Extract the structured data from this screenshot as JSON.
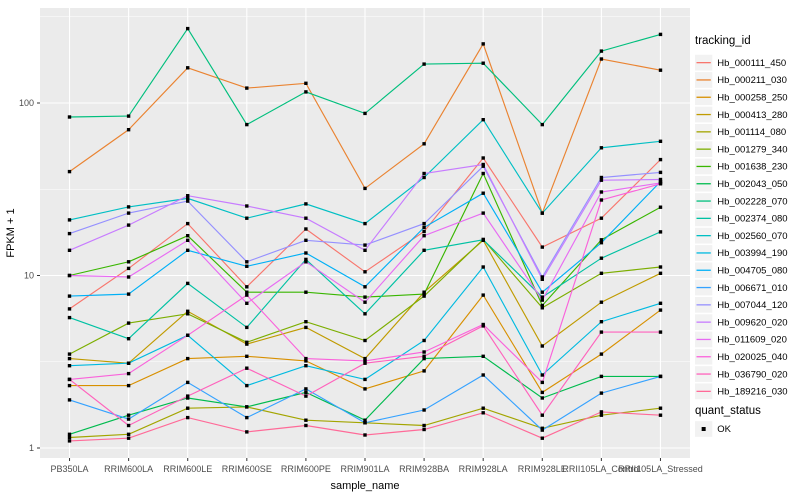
{
  "chart_data": {
    "type": "line",
    "title": "",
    "xlabel": "sample_name",
    "ylabel": "FPKM + 1",
    "legend_title": "tracking_id",
    "legend_position": "right",
    "grid": true,
    "panel_bg": "#EBEBEB",
    "grid_color": "#FFFFFF",
    "tick_label_color": "#4D4D4D",
    "axis_title_color": "#000000",
    "legend_key_bg": "#F2F2F2",
    "y_scale": "log10",
    "y_ticks": [
      1,
      10,
      100
    ],
    "y_minor_ticks": [
      3.162,
      31.62,
      316.2
    ],
    "y_range": [
      0.875,
      356
    ],
    "categories": [
      "PB350LA",
      "RRIM600LA",
      "RRIM600LE",
      "RRIM600SE",
      "RRIM600PE",
      "RRIM901LA",
      "RRIM928BA",
      "RRIM928LA",
      "RRIM928LE",
      "RRII105LA_Control",
      "RRII105LA_Stressed"
    ],
    "series": [
      {
        "name": "Hb_000111_450",
        "color": "#F8766D",
        "values": [
          6.4,
          11,
          20,
          8.6,
          18.6,
          10.5,
          18,
          48,
          14.6,
          21.5,
          47
        ]
      },
      {
        "name": "Hb_000211_030",
        "color": "#EA8331",
        "values": [
          40,
          70,
          160,
          122,
          130,
          32,
          58,
          220,
          23,
          180,
          155
        ]
      },
      {
        "name": "Hb_000258_250",
        "color": "#D89000",
        "values": [
          2.3,
          2.3,
          3.3,
          3.4,
          3.2,
          2.2,
          2.8,
          7.7,
          2.1,
          3.5,
          6.3
        ]
      },
      {
        "name": "Hb_000413_280",
        "color": "#C09B00",
        "values": [
          3.3,
          3.1,
          6.2,
          4.0,
          5.0,
          3.3,
          8.0,
          16,
          3.9,
          7.0,
          10.3
        ]
      },
      {
        "name": "Hb_001114_080",
        "color": "#A3A500",
        "values": [
          1.15,
          1.2,
          1.7,
          1.73,
          1.45,
          1.4,
          1.35,
          1.7,
          1.3,
          1.55,
          1.7
        ]
      },
      {
        "name": "Hb_001279_340",
        "color": "#7CAE00",
        "values": [
          3.5,
          5.3,
          6.0,
          4.1,
          5.4,
          4.2,
          7.6,
          16.2,
          6.5,
          10.3,
          11.2
        ]
      },
      {
        "name": "Hb_001638_230",
        "color": "#39B600",
        "values": [
          10,
          12,
          17,
          8.0,
          8.0,
          7.5,
          7.8,
          39,
          6.7,
          16.1,
          24.9
        ]
      },
      {
        "name": "Hb_002043_050",
        "color": "#00BB4E",
        "values": [
          1.2,
          1.55,
          1.95,
          1.73,
          2.1,
          1.45,
          3.3,
          3.4,
          1.95,
          2.6,
          2.6
        ]
      },
      {
        "name": "Hb_002228_070",
        "color": "#00BF7D",
        "values": [
          83,
          84,
          270,
          75,
          116,
          87,
          168,
          170,
          75,
          200,
          250
        ]
      },
      {
        "name": "Hb_002374_080",
        "color": "#00C1A3",
        "values": [
          5.7,
          4.3,
          9.0,
          5.0,
          12.4,
          6.0,
          14,
          16.1,
          7.5,
          12.6,
          17.9
        ]
      },
      {
        "name": "Hb_002560_070",
        "color": "#00BFC4",
        "values": [
          21,
          25,
          28,
          21.5,
          26,
          20,
          37,
          80,
          23,
          55,
          60
        ]
      },
      {
        "name": "Hb_003994_190",
        "color": "#00BAE0",
        "values": [
          3.0,
          3.1,
          4.5,
          2.3,
          3.0,
          2.5,
          4.2,
          11.2,
          2.65,
          5.4,
          6.9
        ]
      },
      {
        "name": "Hb_004705_080",
        "color": "#00B0F6",
        "values": [
          7.6,
          7.8,
          14,
          11.3,
          13.5,
          8.6,
          19,
          30,
          8.0,
          15.5,
          35
        ]
      },
      {
        "name": "Hb_006671_010",
        "color": "#35A2FF",
        "values": [
          1.9,
          1.47,
          2.4,
          1.5,
          2.2,
          1.4,
          1.66,
          2.65,
          1.27,
          2.08,
          2.6
        ]
      },
      {
        "name": "Hb_007044_120",
        "color": "#9590FF",
        "values": [
          17.5,
          23,
          27,
          12,
          16,
          15,
          20,
          43,
          9.8,
          37,
          39.6
        ]
      },
      {
        "name": "Hb_009620_020",
        "color": "#C77CFF",
        "values": [
          14,
          19.6,
          29,
          25.3,
          21.5,
          14,
          39,
          44,
          9.5,
          35.7,
          36
        ]
      },
      {
        "name": "Hb_011609_020",
        "color": "#E76BF3",
        "values": [
          10,
          9.8,
          16,
          6.9,
          12,
          7.0,
          17,
          23,
          7.2,
          30.5,
          34.4
        ]
      },
      {
        "name": "Hb_020025_040",
        "color": "#FA62DB",
        "values": [
          2.5,
          2.7,
          4.5,
          7.7,
          3.3,
          3.2,
          3.6,
          5.2,
          2.4,
          27.4,
          34
        ]
      },
      {
        "name": "Hb_036790_020",
        "color": "#FF62BC",
        "values": [
          2.5,
          1.35,
          2.0,
          2.9,
          2.0,
          3.1,
          3.4,
          5.1,
          1.55,
          4.7,
          4.7
        ]
      },
      {
        "name": "Hb_189216_030",
        "color": "#FF6A98",
        "values": [
          1.1,
          1.14,
          1.5,
          1.24,
          1.35,
          1.19,
          1.28,
          1.6,
          1.14,
          1.62,
          1.55
        ]
      }
    ],
    "point_marker": {
      "shape": "square",
      "color": "#000000"
    }
  },
  "quant_legend": {
    "title": "quant_status",
    "items": [
      {
        "label": "OK",
        "marker": "black-square"
      }
    ]
  }
}
